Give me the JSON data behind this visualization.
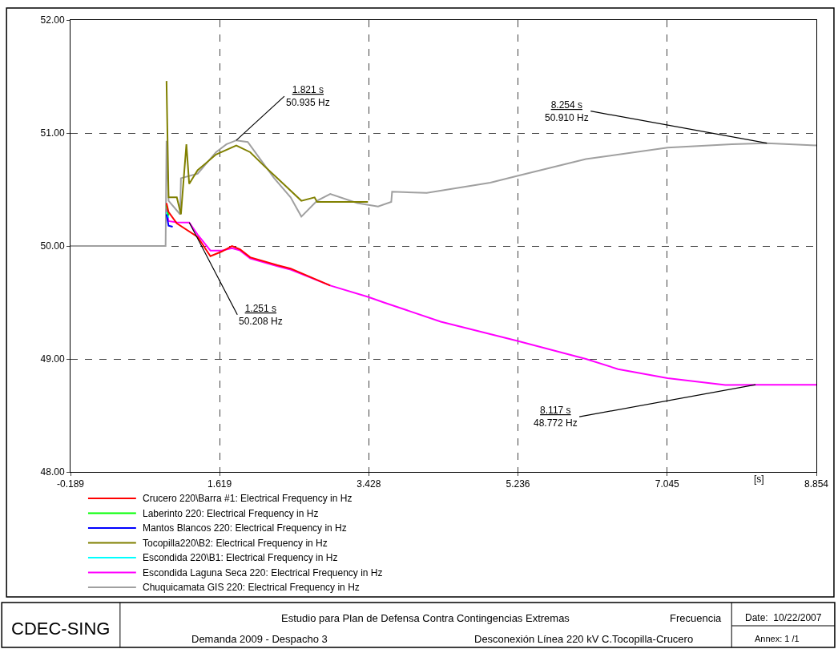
{
  "chart_data": {
    "type": "line",
    "xlabel": "[s]",
    "xlim": [
      -0.189,
      8.854
    ],
    "xticks": [
      -0.189,
      1.619,
      3.428,
      5.236,
      7.045,
      8.854
    ],
    "ylim": [
      48,
      52
    ],
    "yticks": [
      {
        "value": 48,
        "label": "48.00"
      },
      {
        "value": 49,
        "label": "49.00"
      },
      {
        "value": 50,
        "label": "50.00"
      },
      {
        "value": 51,
        "label": "51.00"
      },
      {
        "value": 52,
        "label": "52.00"
      }
    ],
    "grid": true,
    "legend": "bottom left",
    "line_style": "solid",
    "series": [
      {
        "name": "Crucero 220\\Barra #1: Electrical Frequency in Hz",
        "color": "#ff0000",
        "x": [
          0.975,
          1.0,
          1.1,
          1.352,
          1.507,
          1.643,
          1.769,
          1.866,
          1.99,
          2.32,
          2.48,
          2.96
        ],
        "values": [
          50.38,
          50.3,
          50.2,
          50.08,
          49.91,
          49.95,
          50.0,
          49.97,
          49.9,
          49.83,
          49.8,
          49.65
        ]
      },
      {
        "name": "Laberinto 220: Electrical Frequency in Hz",
        "color": "#00ff00",
        "x": [
          0.975,
          1.0
        ],
        "values": [
          50.36,
          50.27
        ]
      },
      {
        "name": "Mantos Blancos 220: Electrical Frequency in Hz",
        "color": "#0000ff",
        "x": [
          0.975,
          1.0,
          1.05
        ],
        "values": [
          50.28,
          50.18,
          50.17
        ]
      },
      {
        "name": "Tocopilla220\\B2: Electrical Frequency in Hz",
        "color": "#808000",
        "x": [
          0.975,
          1.0,
          1.1,
          1.15,
          1.216,
          1.25,
          1.352,
          1.575,
          1.821,
          1.99,
          2.157,
          2.32,
          2.61,
          2.77,
          2.8,
          3.417
        ],
        "values": [
          51.46,
          50.43,
          50.43,
          50.28,
          50.9,
          50.55,
          50.67,
          50.81,
          50.89,
          50.83,
          50.71,
          50.6,
          50.4,
          50.43,
          50.39,
          50.39
        ]
      },
      {
        "name": "Escondida 220\\B1: Electrical Frequency in Hz",
        "color": "#00ffff",
        "x": [
          0.975,
          1.0
        ],
        "values": [
          50.3,
          50.25
        ]
      },
      {
        "name": "Escondida Laguna Seca 220: Electrical Frequency in Hz",
        "color": "#ff00ff",
        "x": [
          0.975,
          1.0,
          1.1,
          1.251,
          1.352,
          1.507,
          1.643,
          1.769,
          1.866,
          1.99,
          2.32,
          2.48,
          2.96,
          3.417,
          3.61,
          4.3,
          5.23,
          6.06,
          6.45,
          7.05,
          7.75,
          8.117,
          8.854
        ],
        "values": [
          50.33,
          50.22,
          50.21,
          50.208,
          50.1,
          49.96,
          49.96,
          49.98,
          49.96,
          49.89,
          49.82,
          49.79,
          49.65,
          49.55,
          49.5,
          49.33,
          49.16,
          49.0,
          48.91,
          48.83,
          48.77,
          48.772,
          48.772
        ]
      },
      {
        "name": "Chuquicamata GIS 220: Electrical Frequency in Hz",
        "color": "#a0a0a0",
        "x": [
          -0.189,
          0.964,
          0.975,
          1.0,
          1.14,
          1.15,
          1.352,
          1.575,
          1.7,
          1.821,
          1.96,
          2.12,
          2.28,
          2.48,
          2.61,
          2.8,
          2.96,
          3.29,
          3.54,
          3.7,
          3.71,
          4.13,
          4.9,
          5.23,
          6.06,
          7.05,
          7.83,
          8.254,
          8.854
        ],
        "values": [
          50,
          50,
          50.93,
          50.4,
          50.28,
          50.6,
          50.64,
          50.83,
          50.9,
          50.935,
          50.92,
          50.76,
          50.6,
          50.43,
          50.26,
          50.4,
          50.46,
          50.38,
          50.35,
          50.39,
          50.48,
          50.47,
          50.56,
          50.62,
          50.77,
          50.87,
          50.9,
          50.91,
          50.89
        ]
      }
    ],
    "annotations": [
      {
        "text": "1.821 s\n50.935 Hz",
        "x": 1.821,
        "y": 50.935
      },
      {
        "text": "1.251 s\n50.208 Hz",
        "x": 1.251,
        "y": 50.208
      },
      {
        "text": "8.254 s\n50.910 Hz",
        "x": 8.254,
        "y": 50.91
      },
      {
        "text": "8.117 s\n48.772 Hz",
        "x": 8.117,
        "y": 48.772
      },
      "CDEC-SING",
      "Estudio para Plan de Defensa Contra Contingencias Extremas",
      "Frecuencia",
      "Date:  10/22/2007",
      "Demanda 2009 - Despacho 3",
      "Desconexión Línea 220 kV C.Tocopilla-Crucero",
      "Annex: 1 /1"
    ]
  }
}
